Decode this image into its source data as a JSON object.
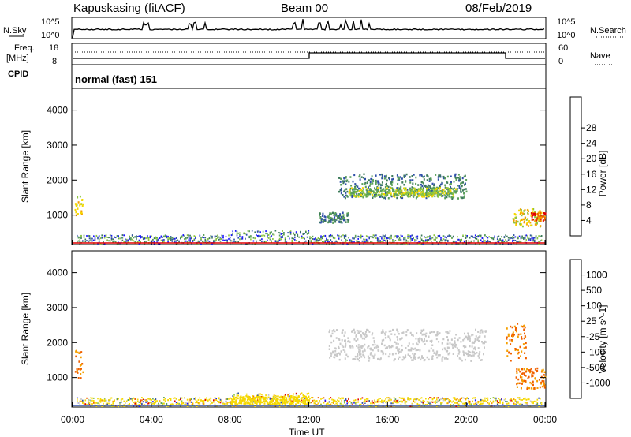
{
  "header": {
    "station": "Kapuskasing (fitACF)",
    "beam": "Beam 00",
    "date": "08/Feb/2019",
    "mode_label": "normal (fast) 151"
  },
  "panels": {
    "noise": {
      "left_label": "N.Sky",
      "right_label": "N.Search",
      "left_ticks": [
        "10^5",
        "10^0"
      ],
      "right_ticks": [
        "10^5",
        "10^0"
      ]
    },
    "freq": {
      "left_label_1": "Freq.",
      "left_label_2": "[MHz]",
      "right_label": "Nave",
      "left_ticks": [
        "18",
        "8"
      ],
      "right_ticks": [
        "60",
        "0"
      ]
    },
    "cpid": {
      "label": "CPID"
    }
  },
  "colors": {
    "power": [
      "#1a14ff",
      "#2e4fa8",
      "#3d7a5a",
      "#5aa05a",
      "#8dc63f",
      "#f5d800",
      "#f5a000",
      "#f06000",
      "#e00000"
    ],
    "velocity": [
      "#e00000",
      "#f06000",
      "#f5a000",
      "#f5d800",
      "#c8c8c8",
      "#8dc63f",
      "#5aa05a",
      "#2e4fa8",
      "#1a14ff"
    ],
    "grey": "#c8c8c8"
  },
  "chart_data": [
    {
      "type": "heatmap",
      "title": "Power",
      "ylabel": "Slant Range [km]",
      "xlabel": "Time UT",
      "x_ticks": [
        "00:00",
        "04:00",
        "08:00",
        "12:00",
        "16:00",
        "20:00",
        "00:00"
      ],
      "xlim_hours": [
        0,
        24
      ],
      "y_ticks": [
        1000,
        2000,
        3000,
        4000
      ],
      "ylim": [
        180,
        4600
      ],
      "colorbar_label": "Power [dB]",
      "colorbar_ticks": [
        4,
        8,
        12,
        16,
        20,
        24,
        28
      ],
      "colorbar_range": [
        0,
        32
      ],
      "regions": [
        {
          "hours": [
            0.1,
            0.5
          ],
          "range_km": [
            1000,
            1600
          ],
          "value": 22
        },
        {
          "hours": [
            12.5,
            14.0
          ],
          "range_km": [
            800,
            1100
          ],
          "value": 10
        },
        {
          "hours": [
            13.5,
            20.0
          ],
          "range_km": [
            1500,
            2200
          ],
          "value": 12
        },
        {
          "hours": [
            14.0,
            19.5
          ],
          "range_km": [
            1550,
            1800
          ],
          "value": 18
        },
        {
          "hours": [
            22.3,
            23.8
          ],
          "range_km": [
            700,
            1200
          ],
          "value": 22
        },
        {
          "hours": [
            23.2,
            24.0
          ],
          "range_km": [
            850,
            1100
          ],
          "value": 30
        }
      ]
    },
    {
      "type": "heatmap",
      "title": "Velocity",
      "ylabel": "Slant Range [km]",
      "xlabel": "Time UT",
      "x_ticks": [
        "00:00",
        "04:00",
        "08:00",
        "12:00",
        "16:00",
        "20:00",
        "00:00"
      ],
      "xlim_hours": [
        0,
        24
      ],
      "y_ticks": [
        1000,
        2000,
        3000,
        4000
      ],
      "ylim": [
        180,
        4600
      ],
      "colorbar_label": "Velocity [m s^-1]",
      "colorbar_ticks": [
        "1000",
        "500",
        "100",
        "25",
        "-25",
        "-100",
        "-500",
        "-1000"
      ],
      "regions": [
        {
          "hours": [
            0.1,
            0.5
          ],
          "range_km": [
            1000,
            1800
          ],
          "value": -300
        },
        {
          "hours": [
            13.0,
            21.0
          ],
          "range_km": [
            1500,
            2400
          ],
          "value": 0
        },
        {
          "hours": [
            8.0,
            12.0
          ],
          "range_km": [
            250,
            500
          ],
          "value": -60
        },
        {
          "hours": [
            22.0,
            23.0
          ],
          "range_km": [
            1500,
            2600
          ],
          "value": -250
        },
        {
          "hours": [
            22.5,
            24.0
          ],
          "range_km": [
            700,
            1300
          ],
          "value": -300
        }
      ]
    }
  ]
}
